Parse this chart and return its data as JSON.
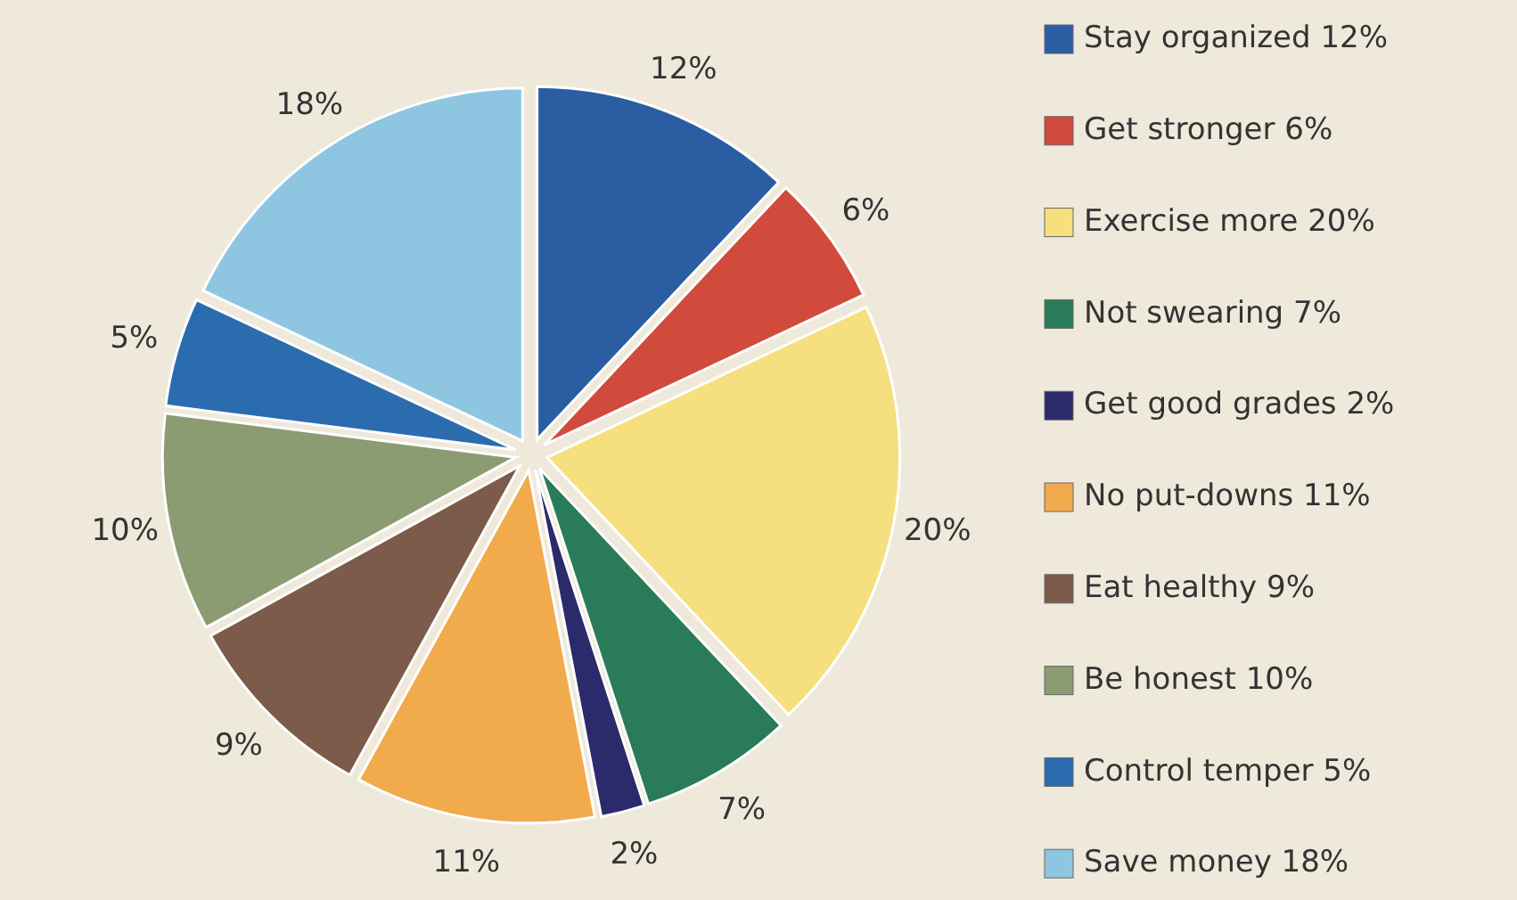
{
  "chart_data": {
    "type": "pie",
    "categories": [
      "Stay organized 12%",
      "Get stronger 6%",
      "Exercise more 20%",
      "Not swearing 7%",
      "Get good grades 2%",
      "No put-downs 11%",
      "Eat healthy 9%",
      "Be honest 10%",
      "Control temper 5%",
      "Save money 18%"
    ],
    "values": [
      12,
      6,
      20,
      7,
      2,
      11,
      9,
      10,
      5,
      18
    ],
    "value_labels": [
      "12%",
      "6%",
      "20%",
      "7%",
      "2%",
      "11%",
      "9%",
      "10%",
      "5%",
      "18%"
    ],
    "colors": [
      "#2b5da3",
      "#d14b3d",
      "#f6df7e",
      "#2a7b59",
      "#2b2a6b",
      "#f1aa4c",
      "#7c5b4a",
      "#8b9b72",
      "#2b6cae",
      "#8ec6e2"
    ],
    "legend": "right"
  }
}
